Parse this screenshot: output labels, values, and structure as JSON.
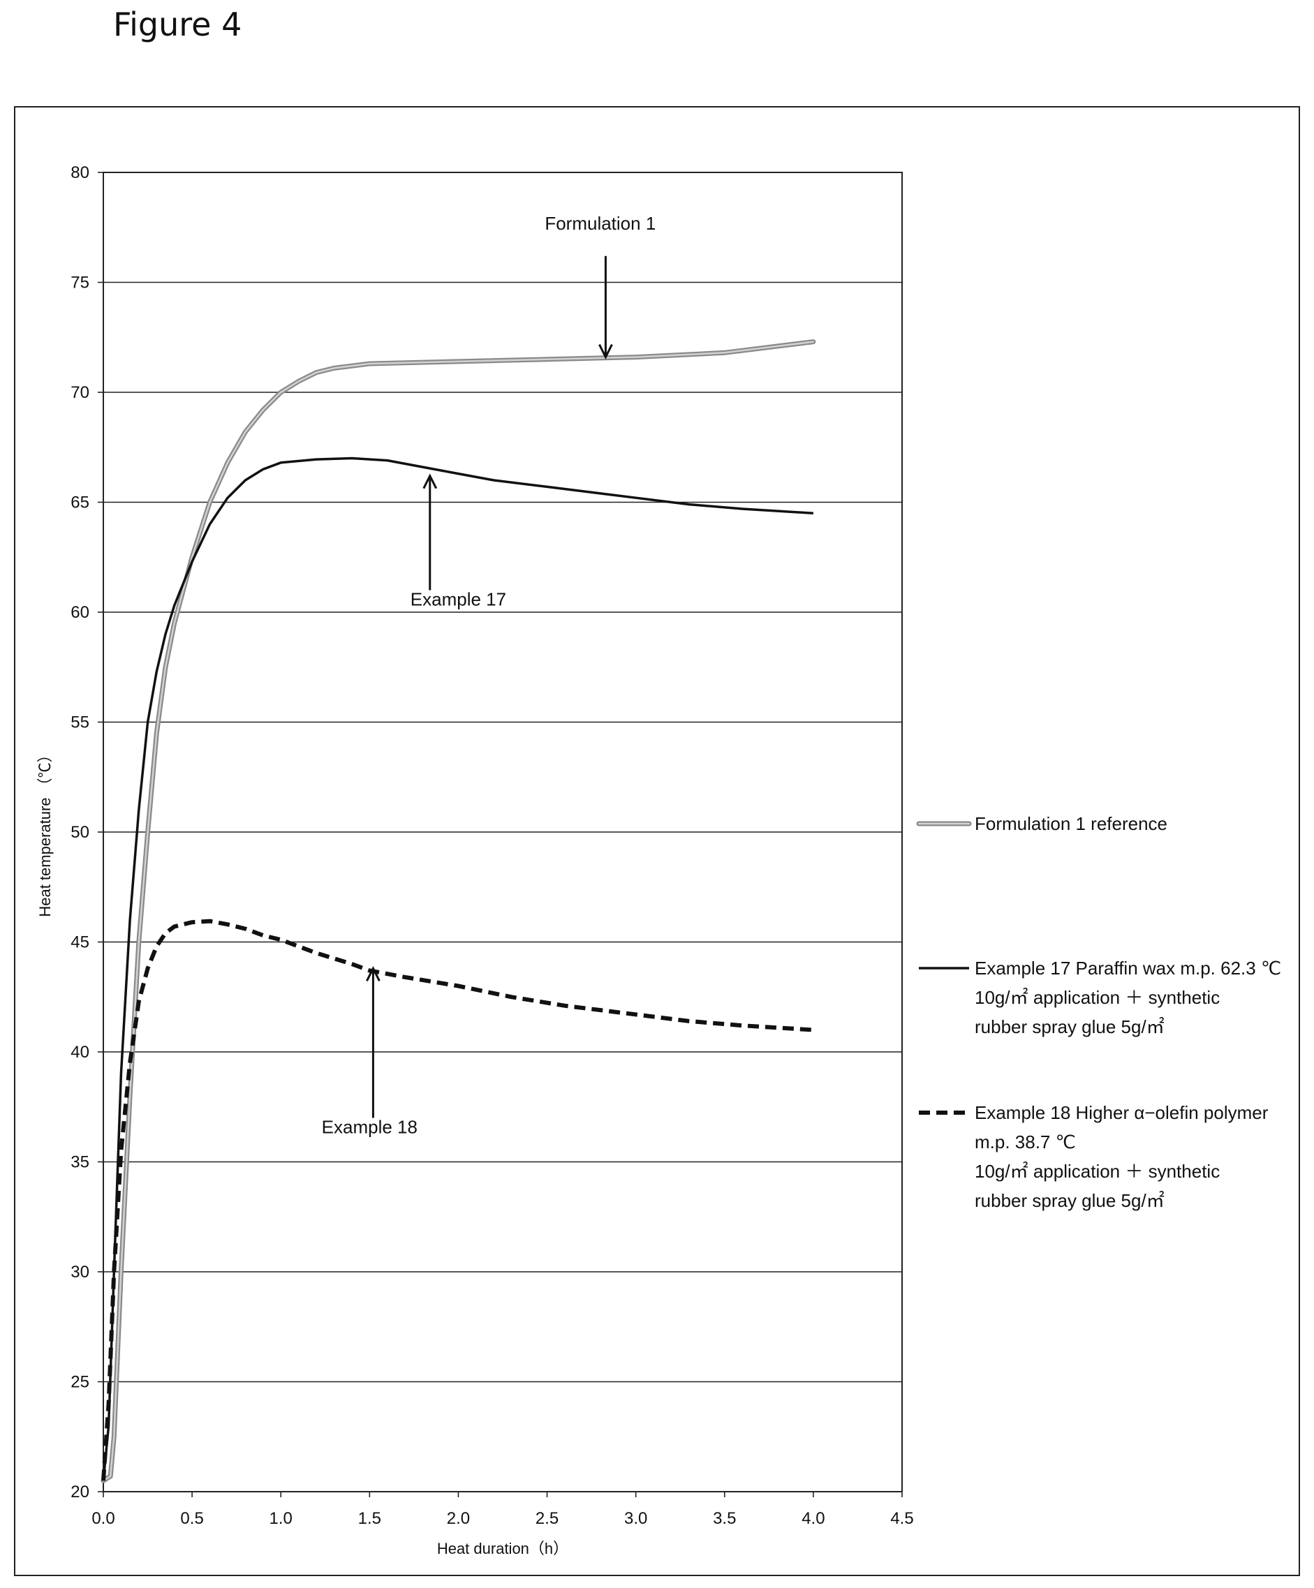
{
  "figure_title": "Figure 4",
  "chart_data": {
    "type": "line",
    "title": "",
    "xlabel": "Heat duration（h）",
    "ylabel": "Heat temperature （℃）",
    "xlim": [
      0,
      4.5
    ],
    "ylim": [
      20,
      80
    ],
    "xticks": [
      0.0,
      0.5,
      1.0,
      1.5,
      2.0,
      2.5,
      3.0,
      3.5,
      4.0,
      4.5
    ],
    "xtick_labels": [
      "0.0",
      "0.5",
      "1.0",
      "1.5",
      "2.0",
      "2.5",
      "3.0",
      "3.5",
      "4.0",
      "4.5"
    ],
    "yticks": [
      20,
      25,
      30,
      35,
      40,
      45,
      50,
      55,
      60,
      65,
      70,
      75,
      80
    ],
    "ytick_labels": [
      "20",
      "25",
      "30",
      "35",
      "40",
      "45",
      "50",
      "55",
      "60",
      "65",
      "70",
      "75",
      "80"
    ],
    "grid": "horizontal",
    "legend_position": "right",
    "series": [
      {
        "name": "Formulation 1 reference",
        "style": "double-gray",
        "color": "#8a8a8a",
        "legend_lines": [
          "Formulation 1 reference"
        ],
        "points": [
          [
            0.0,
            20.5
          ],
          [
            0.04,
            20.7
          ],
          [
            0.06,
            22.5
          ],
          [
            0.1,
            30
          ],
          [
            0.15,
            38
          ],
          [
            0.2,
            45
          ],
          [
            0.25,
            50
          ],
          [
            0.3,
            54.5
          ],
          [
            0.35,
            57.5
          ],
          [
            0.4,
            59.5
          ],
          [
            0.5,
            62.5
          ],
          [
            0.6,
            65
          ],
          [
            0.7,
            66.8
          ],
          [
            0.8,
            68.2
          ],
          [
            0.9,
            69.2
          ],
          [
            1.0,
            70
          ],
          [
            1.1,
            70.5
          ],
          [
            1.2,
            70.9
          ],
          [
            1.3,
            71.1
          ],
          [
            1.5,
            71.3
          ],
          [
            2.0,
            71.4
          ],
          [
            2.5,
            71.5
          ],
          [
            3.0,
            71.6
          ],
          [
            3.5,
            71.8
          ],
          [
            3.8,
            72.1
          ],
          [
            4.0,
            72.3
          ]
        ]
      },
      {
        "name": "Example 17",
        "style": "solid-black",
        "color": "#111111",
        "legend_lines": [
          "Example 17 Paraffin wax m.p. 62.3 ℃",
          "10g/㎡ application ＋ synthetic",
          "rubber spray glue 5g/㎡"
        ],
        "points": [
          [
            0.0,
            20.5
          ],
          [
            0.03,
            23
          ],
          [
            0.06,
            30
          ],
          [
            0.1,
            39
          ],
          [
            0.15,
            46
          ],
          [
            0.2,
            51
          ],
          [
            0.25,
            55
          ],
          [
            0.3,
            57.3
          ],
          [
            0.35,
            59
          ],
          [
            0.4,
            60.3
          ],
          [
            0.5,
            62.3
          ],
          [
            0.6,
            64
          ],
          [
            0.7,
            65.2
          ],
          [
            0.8,
            66
          ],
          [
            0.9,
            66.5
          ],
          [
            1.0,
            66.8
          ],
          [
            1.2,
            66.95
          ],
          [
            1.4,
            67
          ],
          [
            1.6,
            66.9
          ],
          [
            1.8,
            66.6
          ],
          [
            2.0,
            66.3
          ],
          [
            2.2,
            66
          ],
          [
            2.5,
            65.7
          ],
          [
            2.8,
            65.4
          ],
          [
            3.0,
            65.2
          ],
          [
            3.3,
            64.9
          ],
          [
            3.6,
            64.7
          ],
          [
            3.8,
            64.6
          ],
          [
            4.0,
            64.5
          ]
        ]
      },
      {
        "name": "Example 18",
        "style": "dashed-black",
        "color": "#111111",
        "legend_lines": [
          "Example 18 Higher α−olefin polymer",
          "m.p. 38.7 ℃",
          "10g/㎡ application ＋ synthetic",
          "rubber spray glue 5g/㎡"
        ],
        "points": [
          [
            0.0,
            20.5
          ],
          [
            0.03,
            24
          ],
          [
            0.06,
            30
          ],
          [
            0.1,
            35.5
          ],
          [
            0.15,
            39.5
          ],
          [
            0.2,
            42.3
          ],
          [
            0.25,
            43.8
          ],
          [
            0.3,
            44.8
          ],
          [
            0.35,
            45.4
          ],
          [
            0.4,
            45.7
          ],
          [
            0.5,
            45.9
          ],
          [
            0.6,
            45.95
          ],
          [
            0.7,
            45.8
          ],
          [
            0.8,
            45.6
          ],
          [
            0.9,
            45.3
          ],
          [
            1.0,
            45.1
          ],
          [
            1.2,
            44.5
          ],
          [
            1.4,
            44.0
          ],
          [
            1.5,
            43.7
          ],
          [
            1.7,
            43.4
          ],
          [
            2.0,
            43.0
          ],
          [
            2.3,
            42.5
          ],
          [
            2.6,
            42.1
          ],
          [
            3.0,
            41.7
          ],
          [
            3.3,
            41.4
          ],
          [
            3.6,
            41.2
          ],
          [
            4.0,
            41.0
          ]
        ]
      }
    ],
    "annotations": [
      {
        "text": "Formulation 1",
        "series": "Formulation 1 reference",
        "label_at": [
          2.8,
          77.4
        ],
        "arrow_from": [
          2.83,
          76.2
        ],
        "arrow_to": [
          2.83,
          71.6
        ]
      },
      {
        "text": "Example 17",
        "series": "Example 17",
        "label_at": [
          2.0,
          60.3
        ],
        "arrow_from": [
          1.84,
          61.0
        ],
        "arrow_to": [
          1.84,
          66.2
        ]
      },
      {
        "text": "Example 18",
        "series": "Example 18",
        "label_at": [
          1.5,
          36.3
        ],
        "arrow_from": [
          1.52,
          37.0
        ],
        "arrow_to": [
          1.52,
          43.8
        ]
      }
    ]
  }
}
